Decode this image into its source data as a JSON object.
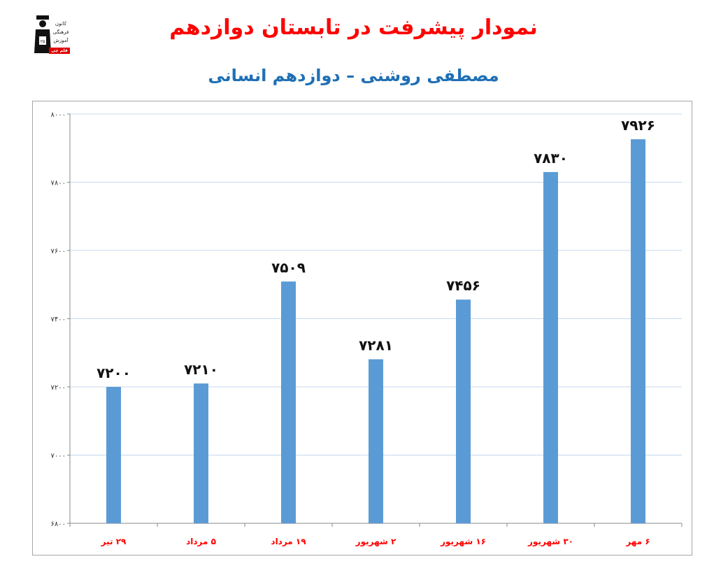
{
  "header": {
    "title": "نمودار پیشرفت در تابستان دوازدهم",
    "subtitle": "مصطفی روشنی – دوازدهم انسانی"
  },
  "logo": {
    "line1": "کانون",
    "line2": "فرهنگی",
    "line3": "آموزش",
    "badge": "قلم چی"
  },
  "chart_data": {
    "type": "bar",
    "categories": [
      "۲۹ تیر",
      "۵ مرداد",
      "۱۹ مرداد",
      "۲ شهریور",
      "۱۶ شهریور",
      "۳۰ شهریور",
      "۶ مهر"
    ],
    "values": [
      7200,
      7210,
      7509,
      7281,
      7456,
      7830,
      7926
    ],
    "data_labels": [
      "۷۲۰۰",
      "۷۲۱۰",
      "۷۵۰۹",
      "۷۲۸۱",
      "۷۴۵۶",
      "۷۸۳۰",
      "۷۹۲۶"
    ],
    "ylim": [
      6800,
      8000
    ],
    "yticks": [
      6800,
      7000,
      7200,
      7400,
      7600,
      7800,
      8000
    ],
    "ytick_labels": [
      "۶۸۰۰",
      "۷۰۰۰",
      "۷۲۰۰",
      "۷۴۰۰",
      "۷۶۰۰",
      "۷۸۰۰",
      "۸۰۰۰"
    ],
    "title": "نمودار پیشرفت در تابستان دوازدهم",
    "subtitle": "مصطفی روشنی – دوازدهم انسانی",
    "xlabel": "",
    "ylabel": "",
    "grid": true,
    "colors": {
      "bar": "#5b9bd5",
      "grid": "#c5d9ee",
      "category_text": "#ff0000"
    }
  }
}
